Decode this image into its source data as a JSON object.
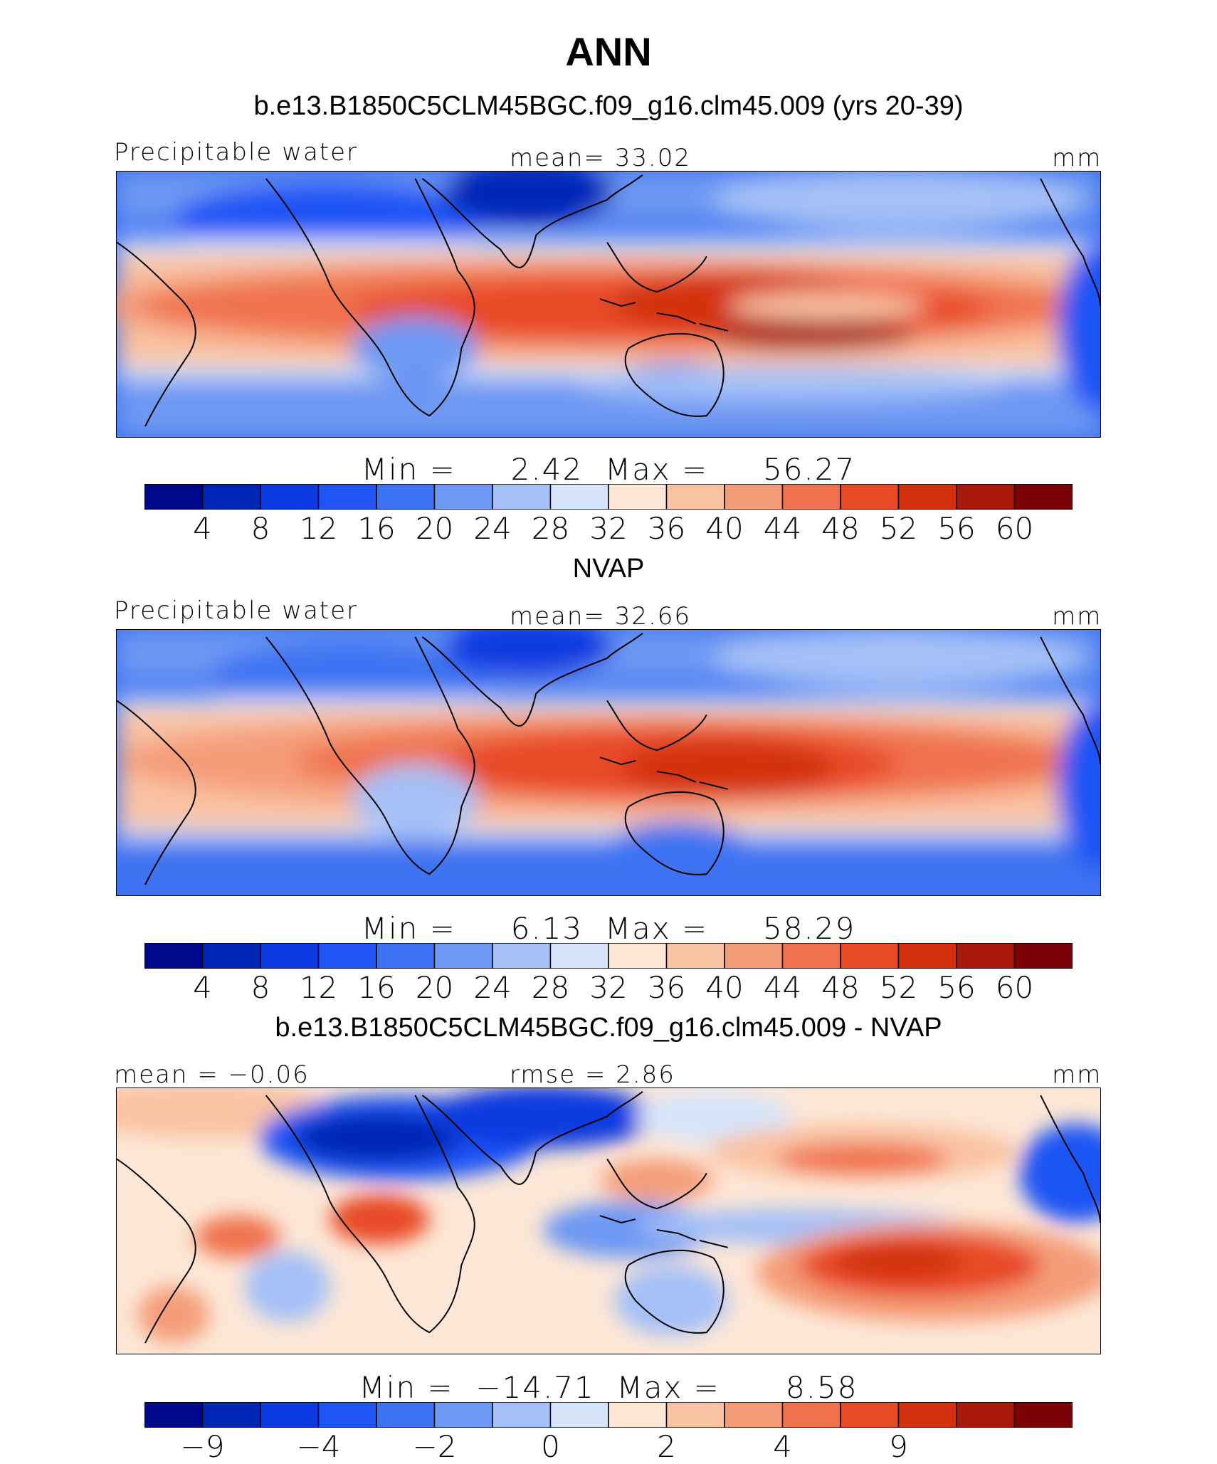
{
  "title": "ANN",
  "palette": [
    "#00088a",
    "#0026b5",
    "#0a3ae0",
    "#1f55f5",
    "#3d73f2",
    "#6d98f3",
    "#a4c0f7",
    "#d5e4fb",
    "#fde7d6",
    "#f9c2a3",
    "#f49c78",
    "#f0724d",
    "#e84a25",
    "#d3300e",
    "#a8190a",
    "#7c0205"
  ],
  "chart_data": [
    {
      "type": "heatmap",
      "subtitle": "b.e13.B1850C5CLM45BGC.f09_g16.clm45.009 (yrs 20-39)",
      "variable": "Precipitable water",
      "stat_label": "mean=   33.02",
      "units": "mm",
      "min_label": "Min  =",
      "min": "2.42",
      "max_label": "Max  =",
      "max": "56.27",
      "levels": [
        4,
        8,
        12,
        16,
        20,
        24,
        28,
        32,
        36,
        40,
        44,
        48,
        52,
        56,
        60
      ],
      "level_labels": [
        "4",
        "8",
        "12",
        "16",
        "20",
        "24",
        "28",
        "32",
        "36",
        "40",
        "44",
        "48",
        "52",
        "56",
        "60"
      ]
    },
    {
      "type": "heatmap",
      "subtitle": "NVAP",
      "variable": "Precipitable water",
      "stat_label": "mean=   32.66",
      "units": "mm",
      "min_label": "Min  =",
      "min": "6.13",
      "max_label": "Max  =",
      "max": "58.29",
      "levels": [
        4,
        8,
        12,
        16,
        20,
        24,
        28,
        32,
        36,
        40,
        44,
        48,
        52,
        56,
        60
      ],
      "level_labels": [
        "4",
        "8",
        "12",
        "16",
        "20",
        "24",
        "28",
        "32",
        "36",
        "40",
        "44",
        "48",
        "52",
        "56",
        "60"
      ]
    },
    {
      "type": "heatmap",
      "subtitle": "b.e13.B1850C5CLM45BGC.f09_g16.clm45.009 - NVAP",
      "left_label": "mean =  −0.06",
      "stat_label": "rmse  =   2.86",
      "units": "mm",
      "min_label": "Min  =",
      "min": "−14.71",
      "max_label": "Max  =",
      "max": "8.58",
      "levels": [
        -9,
        -6,
        -4,
        -3,
        -2,
        -1,
        0,
        1,
        2,
        3,
        4,
        6,
        9,
        12,
        15
      ],
      "level_labels": [
        "−9",
        "",
        "−4",
        "",
        "−2",
        "",
        "0",
        "",
        "2",
        "",
        "4",
        "",
        "9",
        "",
        ""
      ]
    }
  ]
}
